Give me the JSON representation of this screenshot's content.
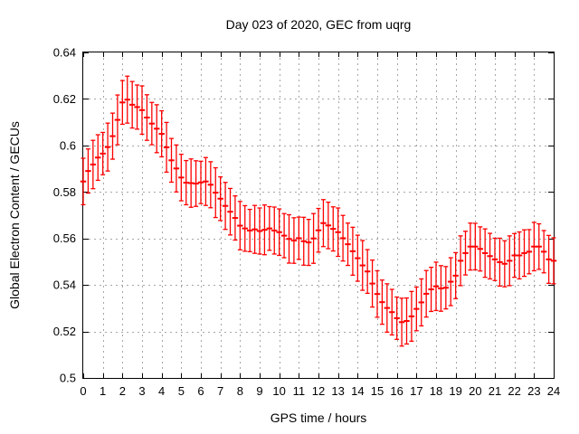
{
  "title": "Day 023 of 2020, GEC from uqrg",
  "xlabel": "GPS time / hours",
  "ylabel": "Global Electron Content / GECUs",
  "colors": {
    "series": "#ff0000",
    "grid": "#a6a6a6",
    "axis": "#000000",
    "background": "#ffffff"
  },
  "chart_data": {
    "type": "scatter",
    "style": "yerrorbars",
    "title": "Day 023 of 2020, GEC from uqrg",
    "xlabel": "GPS time / hours",
    "ylabel": "Global Electron Content / GECUs",
    "xlim": [
      0,
      24
    ],
    "ylim": [
      0.5,
      0.64
    ],
    "grid": true,
    "legend": "none",
    "x_tick_values": [
      0,
      1,
      2,
      3,
      4,
      5,
      6,
      7,
      8,
      9,
      10,
      11,
      12,
      13,
      14,
      15,
      16,
      17,
      18,
      19,
      20,
      21,
      22,
      23,
      24
    ],
    "x_tick_labels": [
      "0",
      "1",
      "2",
      "3",
      "4",
      "5",
      "6",
      "7",
      "8",
      "9",
      "10",
      "11",
      "12",
      "13",
      "14",
      "15",
      "16",
      "17",
      "18",
      "19",
      "20",
      "21",
      "22",
      "23",
      "24"
    ],
    "y_tick_values": [
      0.5,
      0.52,
      0.54,
      0.56,
      0.58,
      0.6,
      0.62,
      0.64
    ],
    "y_tick_labels": [
      "0.5",
      "0.52",
      "0.54",
      "0.56",
      "0.58",
      "0.6",
      "0.62",
      "0.64"
    ],
    "x": [
      0,
      0.25,
      0.5,
      0.75,
      1,
      1.25,
      1.5,
      1.75,
      2,
      2.25,
      2.5,
      2.75,
      3,
      3.25,
      3.5,
      3.75,
      4,
      4.25,
      4.5,
      4.75,
      5,
      5.25,
      5.5,
      5.75,
      6,
      6.25,
      6.5,
      6.75,
      7,
      7.25,
      7.5,
      7.75,
      8,
      8.25,
      8.5,
      8.75,
      9,
      9.25,
      9.5,
      9.75,
      10,
      10.25,
      10.5,
      10.75,
      11,
      11.25,
      11.5,
      11.75,
      12,
      12.25,
      12.5,
      12.75,
      13,
      13.25,
      13.5,
      13.75,
      14,
      14.25,
      14.5,
      14.75,
      15,
      15.25,
      15.5,
      15.75,
      16,
      16.25,
      16.5,
      16.75,
      17,
      17.25,
      17.5,
      17.75,
      18,
      18.25,
      18.5,
      18.75,
      19,
      19.25,
      19.5,
      19.75,
      20,
      20.25,
      20.5,
      20.75,
      21,
      21.25,
      21.5,
      21.75,
      22,
      22.25,
      22.5,
      22.75,
      23,
      23.25,
      23.5,
      23.75,
      24
    ],
    "y": [
      0.5845,
      0.589,
      0.5918,
      0.5948,
      0.5965,
      0.5993,
      0.604,
      0.611,
      0.6185,
      0.6197,
      0.6175,
      0.6165,
      0.6152,
      0.612,
      0.6094,
      0.6072,
      0.605,
      0.5992,
      0.5936,
      0.5901,
      0.5862,
      0.584,
      0.5838,
      0.5836,
      0.5841,
      0.5845,
      0.5831,
      0.5797,
      0.5771,
      0.574,
      0.5715,
      0.5688,
      0.5655,
      0.5643,
      0.5634,
      0.5639,
      0.5632,
      0.5637,
      0.5643,
      0.5634,
      0.5627,
      0.5612,
      0.5598,
      0.5591,
      0.5601,
      0.5588,
      0.5583,
      0.56,
      0.5635,
      0.5666,
      0.5656,
      0.5641,
      0.5627,
      0.5601,
      0.5575,
      0.5545,
      0.5515,
      0.5484,
      0.5458,
      0.5406,
      0.5361,
      0.5326,
      0.5301,
      0.5283,
      0.5257,
      0.524,
      0.5245,
      0.5265,
      0.5297,
      0.5325,
      0.5362,
      0.5381,
      0.5394,
      0.5385,
      0.5388,
      0.5414,
      0.544,
      0.5504,
      0.5537,
      0.5565,
      0.5565,
      0.5555,
      0.5537,
      0.5524,
      0.551,
      0.5498,
      0.5491,
      0.5504,
      0.5527,
      0.5527,
      0.5537,
      0.5543,
      0.5565,
      0.5565,
      0.5543,
      0.551,
      0.5504
    ],
    "yerr": [
      0.01,
      0.0095,
      0.0104,
      0.0098,
      0.0091,
      0.0103,
      0.0099,
      0.0107,
      0.0094,
      0.0101,
      0.01,
      0.0095,
      0.0104,
      0.0098,
      0.0091,
      0.0103,
      0.0099,
      0.0107,
      0.0094,
      0.0101,
      0.01,
      0.0095,
      0.0104,
      0.0098,
      0.0091,
      0.0103,
      0.0099,
      0.0107,
      0.0094,
      0.0101,
      0.01,
      0.0095,
      0.0104,
      0.0098,
      0.0091,
      0.0103,
      0.0099,
      0.0107,
      0.0094,
      0.0101,
      0.01,
      0.0095,
      0.0104,
      0.0098,
      0.0091,
      0.0103,
      0.0099,
      0.0107,
      0.0094,
      0.0101,
      0.01,
      0.0095,
      0.0104,
      0.0098,
      0.0091,
      0.0103,
      0.0099,
      0.0107,
      0.0094,
      0.0101,
      0.01,
      0.0095,
      0.0104,
      0.0098,
      0.0091,
      0.0103,
      0.0099,
      0.0107,
      0.0094,
      0.0101,
      0.01,
      0.0095,
      0.0104,
      0.0098,
      0.0091,
      0.0103,
      0.0099,
      0.0107,
      0.0094,
      0.0101,
      0.01,
      0.0095,
      0.0104,
      0.0098,
      0.0091,
      0.0103,
      0.0099,
      0.0107,
      0.0094,
      0.0101,
      0.01,
      0.0095,
      0.0104,
      0.0098,
      0.0091,
      0.0103,
      0.0099
    ]
  }
}
